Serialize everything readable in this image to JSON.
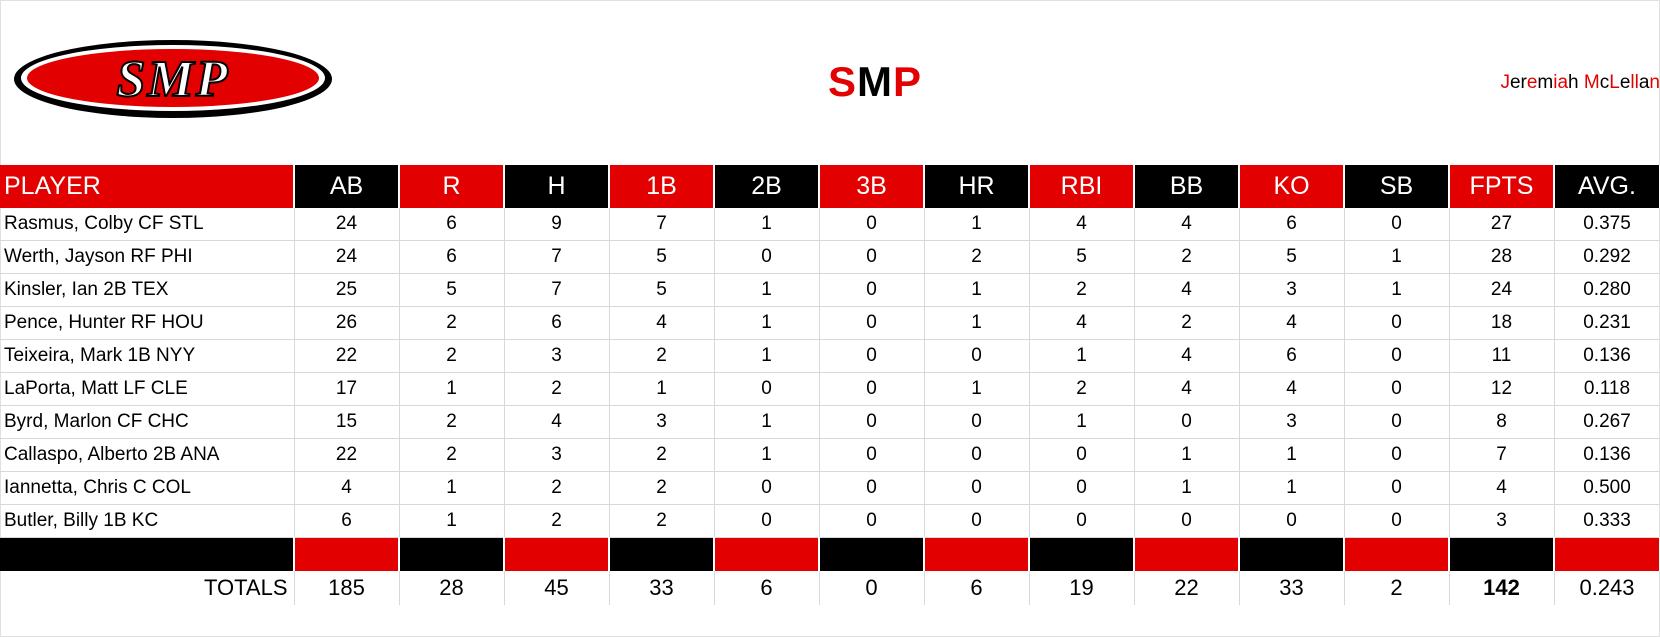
{
  "header": {
    "logo_text": "SMP",
    "title_parts": [
      {
        "text": "S",
        "color": "#e30000"
      },
      {
        "text": "M",
        "color": "#000000"
      },
      {
        "text": "P",
        "color": "#e30000"
      }
    ],
    "owner_parts": [
      {
        "text": "J",
        "color": "#e30000"
      },
      {
        "text": "er",
        "color": "#000000"
      },
      {
        "text": "e",
        "color": "#e30000"
      },
      {
        "text": "m",
        "color": "#000000"
      },
      {
        "text": "ia",
        "color": "#e30000"
      },
      {
        "text": "h ",
        "color": "#000000"
      },
      {
        "text": "M",
        "color": "#e30000"
      },
      {
        "text": "c",
        "color": "#000000"
      },
      {
        "text": "L",
        "color": "#e30000"
      },
      {
        "text": "e",
        "color": "#000000"
      },
      {
        "text": "ll",
        "color": "#e30000"
      },
      {
        "text": "a",
        "color": "#000000"
      },
      {
        "text": "n",
        "color": "#e30000"
      }
    ]
  },
  "colors": {
    "red": "#e30000",
    "black": "#000000"
  },
  "table": {
    "columns": [
      {
        "key": "player",
        "label": "PLAYER",
        "color": "red"
      },
      {
        "key": "ab",
        "label": "AB",
        "color": "black"
      },
      {
        "key": "r",
        "label": "R",
        "color": "red"
      },
      {
        "key": "h",
        "label": "H",
        "color": "black"
      },
      {
        "key": "1b",
        "label": "1B",
        "color": "red"
      },
      {
        "key": "2b",
        "label": "2B",
        "color": "black"
      },
      {
        "key": "3b",
        "label": "3B",
        "color": "red"
      },
      {
        "key": "hr",
        "label": "HR",
        "color": "black"
      },
      {
        "key": "rbi",
        "label": "RBI",
        "color": "red"
      },
      {
        "key": "bb",
        "label": "BB",
        "color": "black"
      },
      {
        "key": "ko",
        "label": "KO",
        "color": "red"
      },
      {
        "key": "sb",
        "label": "SB",
        "color": "black"
      },
      {
        "key": "fpts",
        "label": "FPTS",
        "color": "red"
      },
      {
        "key": "avg",
        "label": "AVG.",
        "color": "black"
      }
    ],
    "rows": [
      [
        "Rasmus, Colby CF STL",
        "24",
        "6",
        "9",
        "7",
        "1",
        "0",
        "1",
        "4",
        "4",
        "6",
        "0",
        "27",
        "0.375"
      ],
      [
        "Werth, Jayson RF PHI",
        "24",
        "6",
        "7",
        "5",
        "0",
        "0",
        "2",
        "5",
        "2",
        "5",
        "1",
        "28",
        "0.292"
      ],
      [
        "Kinsler, Ian 2B TEX",
        "25",
        "5",
        "7",
        "5",
        "1",
        "0",
        "1",
        "2",
        "4",
        "3",
        "1",
        "24",
        "0.280"
      ],
      [
        "Pence, Hunter RF HOU",
        "26",
        "2",
        "6",
        "4",
        "1",
        "0",
        "1",
        "4",
        "2",
        "4",
        "0",
        "18",
        "0.231"
      ],
      [
        "Teixeira, Mark 1B NYY",
        "22",
        "2",
        "3",
        "2",
        "1",
        "0",
        "0",
        "1",
        "4",
        "6",
        "0",
        "11",
        "0.136"
      ],
      [
        "LaPorta, Matt LF CLE",
        "17",
        "1",
        "2",
        "1",
        "0",
        "0",
        "1",
        "2",
        "4",
        "4",
        "0",
        "12",
        "0.118"
      ],
      [
        "Byrd, Marlon CF CHC",
        "15",
        "2",
        "4",
        "3",
        "1",
        "0",
        "0",
        "1",
        "0",
        "3",
        "0",
        "8",
        "0.267"
      ],
      [
        "Callaspo, Alberto 2B ANA",
        "22",
        "2",
        "3",
        "2",
        "1",
        "0",
        "0",
        "0",
        "1",
        "1",
        "0",
        "7",
        "0.136"
      ],
      [
        "Iannetta, Chris C COL",
        "4",
        "1",
        "2",
        "2",
        "0",
        "0",
        "0",
        "0",
        "1",
        "1",
        "0",
        "4",
        "0.500"
      ],
      [
        "Butler, Billy 1B KC",
        "6",
        "1",
        "2",
        "2",
        "0",
        "0",
        "0",
        "0",
        "0",
        "0",
        "0",
        "3",
        "0.333"
      ]
    ],
    "totals": {
      "label": "TOTALS",
      "values": [
        "185",
        "28",
        "45",
        "33",
        "6",
        "0",
        "6",
        "19",
        "22",
        "33",
        "2",
        "142",
        "0.243"
      ]
    }
  }
}
